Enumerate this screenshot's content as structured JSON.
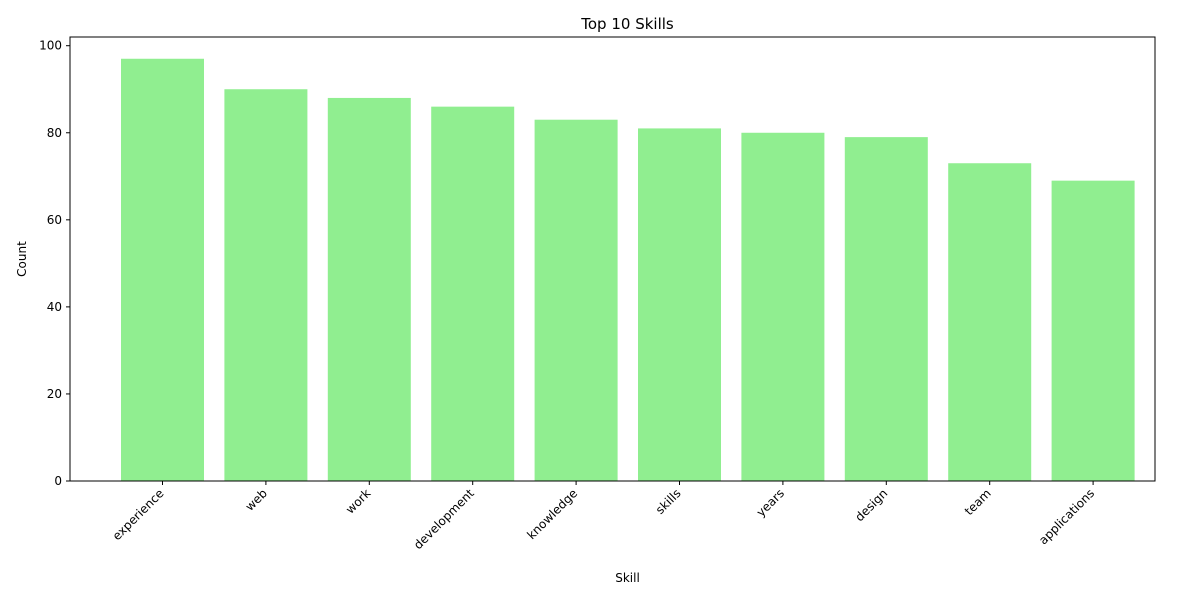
{
  "chart_data": {
    "type": "bar",
    "title": "Top 10 Skills",
    "xlabel": "Skill",
    "ylabel": "Count",
    "categories": [
      "experience",
      "web",
      "work",
      "development",
      "knowledge",
      "skills",
      "years",
      "design",
      "team",
      "applications"
    ],
    "values": [
      97,
      90,
      88,
      86,
      83,
      81,
      80,
      79,
      73,
      69
    ],
    "ylim": [
      0,
      102
    ],
    "yticks": [
      0,
      20,
      40,
      60,
      80,
      100
    ],
    "ytick_labels": [
      "0",
      "20",
      "40",
      "60",
      "80",
      "100"
    ],
    "bar_color": "#90ee90",
    "grid": false,
    "legend": "none",
    "xtick_rotation": "45 degrees, right-aligned"
  }
}
